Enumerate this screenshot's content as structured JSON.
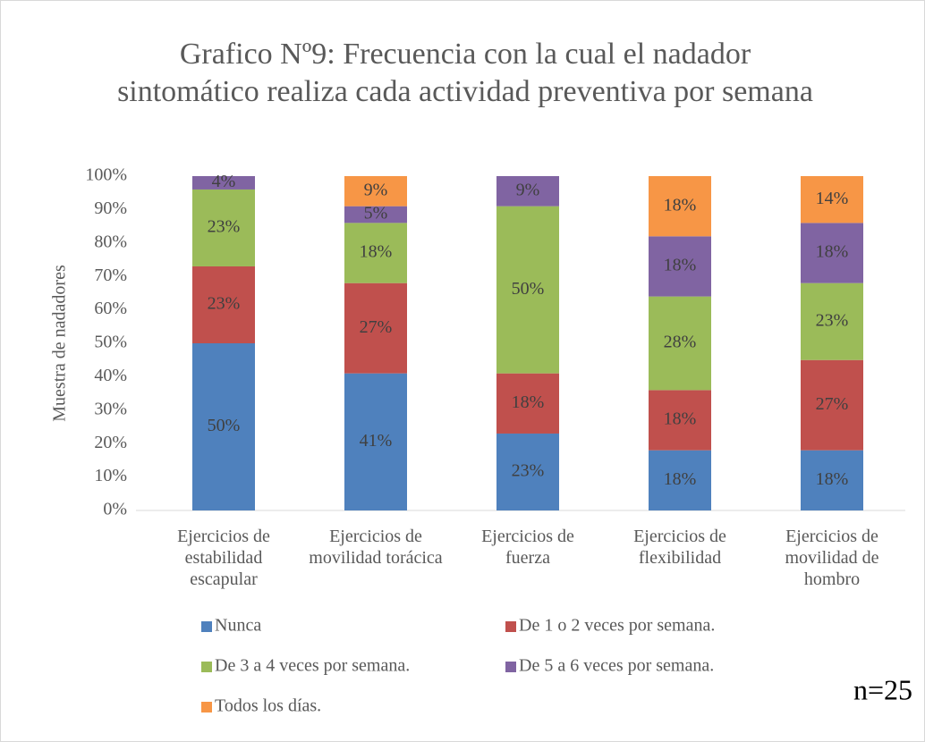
{
  "chart_data": {
    "type": "stacked_bar",
    "title": "Grafico Nº9: Frecuencia con la cual el nadador sintomático realiza cada actividad preventiva por semana",
    "y_label": "Muestra de nadadores",
    "annotation": "n=25",
    "categories": [
      "Ejercicios de estabilidad escapular",
      "Ejercicios de movilidad torácica",
      "Ejercicios de fuerza",
      "Ejercicios de flexibilidad",
      "Ejercicios de movilidad de hombro"
    ],
    "series": [
      {
        "name": "Nunca",
        "color": "#4f81bd",
        "values": [
          50,
          41,
          23,
          18,
          18
        ],
        "value_labels": [
          "50%",
          "41%",
          "23%",
          "18%",
          "18%"
        ]
      },
      {
        "name": "De 1 o 2 veces por semana.",
        "color": "#c0504d",
        "values": [
          23,
          27,
          18,
          18,
          27
        ],
        "value_labels": [
          "23%",
          "27%",
          "18%",
          "18%",
          "27%"
        ]
      },
      {
        "name": "De 3 a 4 veces por semana.",
        "color": "#9bbb59",
        "values": [
          23,
          18,
          50,
          28,
          23
        ],
        "value_labels": [
          "23%",
          "18%",
          "50%",
          "28%",
          "23%"
        ]
      },
      {
        "name": "De 5 a 6 veces por semana.",
        "color": "#8064a2",
        "values": [
          4,
          5,
          9,
          18,
          18
        ],
        "value_labels": [
          "4%",
          "5%",
          "9%",
          "18%",
          "18%"
        ]
      },
      {
        "name": "Todos los días.",
        "color": "#f79646",
        "values": [
          null,
          9,
          null,
          18,
          14
        ],
        "value_labels": [
          null,
          "9%",
          null,
          "18%",
          "14%"
        ]
      }
    ],
    "ylim": [
      0,
      100
    ],
    "yticks": [
      {
        "value": 0,
        "label": "0%"
      },
      {
        "value": 10,
        "label": "10%"
      },
      {
        "value": 20,
        "label": "20%"
      },
      {
        "value": 30,
        "label": "30%"
      },
      {
        "value": 40,
        "label": "40%"
      },
      {
        "value": 50,
        "label": "50%"
      },
      {
        "value": 60,
        "label": "60%"
      },
      {
        "value": 70,
        "label": "70%"
      },
      {
        "value": 80,
        "label": "80%"
      },
      {
        "value": 90,
        "label": "90%"
      },
      {
        "value": 100,
        "label": "100%"
      }
    ]
  }
}
